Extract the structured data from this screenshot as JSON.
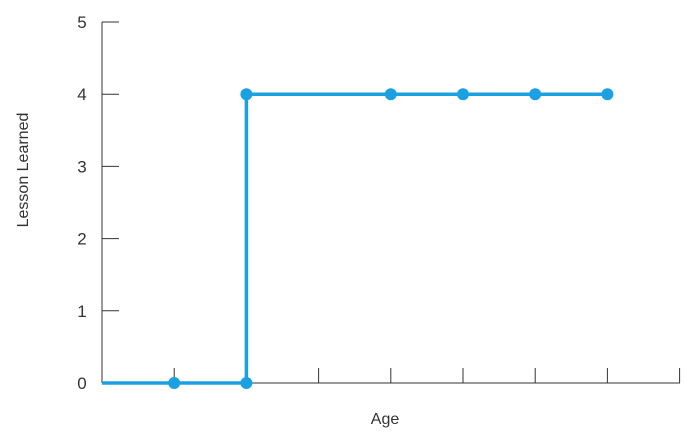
{
  "chart_data": {
    "type": "line",
    "title": "",
    "xlabel": "Age",
    "ylabel": "Lesson Learned",
    "ylim": [
      0,
      5
    ],
    "yticks": [
      "0",
      "1",
      "2",
      "3",
      "4",
      "5"
    ],
    "x_tick_count": 8,
    "x_ticks_labeled": false,
    "grid": false,
    "legend": "none",
    "series": [
      {
        "color": "#1ba1e2",
        "points": [
          {
            "x": 0,
            "y": 0,
            "marker": false
          },
          {
            "x": 1,
            "y": 0,
            "marker": true
          },
          {
            "x": 2,
            "y": 0,
            "marker": true
          },
          {
            "x": 2,
            "y": 4,
            "marker": true
          },
          {
            "x": 4,
            "y": 4,
            "marker": true
          },
          {
            "x": 5,
            "y": 4,
            "marker": true
          },
          {
            "x": 6,
            "y": 4,
            "marker": true
          },
          {
            "x": 7,
            "y": 4,
            "marker": true
          }
        ]
      }
    ],
    "axis_color": "#333333"
  }
}
